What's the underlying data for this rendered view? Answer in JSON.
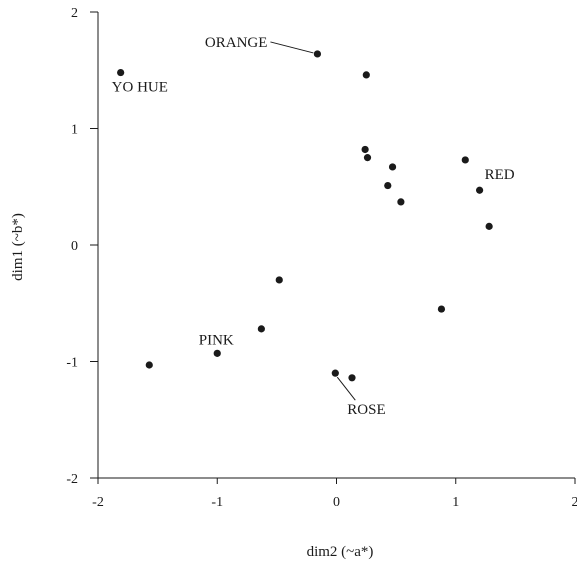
{
  "chart_data": {
    "type": "scatter",
    "title": "",
    "xlabel": "dim2 (~a*)",
    "ylabel": "dim1 (~b*)",
    "xlim": [
      -2,
      2
    ],
    "ylim": [
      -2,
      2
    ],
    "xticks": [
      -2,
      -1,
      0,
      1,
      2
    ],
    "yticks": [
      -2,
      -1,
      0,
      1,
      2
    ],
    "grid": false,
    "point_color": "#1a1a1a",
    "points": [
      {
        "x": -1.81,
        "y": 1.48,
        "label": "YO HUE"
      },
      {
        "x": -0.16,
        "y": 1.64,
        "label": "ORANGE"
      },
      {
        "x": 0.25,
        "y": 1.46,
        "label": ""
      },
      {
        "x": 0.24,
        "y": 0.82,
        "label": ""
      },
      {
        "x": 0.26,
        "y": 0.75,
        "label": ""
      },
      {
        "x": 0.47,
        "y": 0.67,
        "label": ""
      },
      {
        "x": 0.43,
        "y": 0.51,
        "label": ""
      },
      {
        "x": 0.54,
        "y": 0.37,
        "label": ""
      },
      {
        "x": 1.08,
        "y": 0.73,
        "label": ""
      },
      {
        "x": 1.2,
        "y": 0.47,
        "label": "RED"
      },
      {
        "x": 1.28,
        "y": 0.16,
        "label": ""
      },
      {
        "x": -0.48,
        "y": -0.3,
        "label": ""
      },
      {
        "x": -0.63,
        "y": -0.72,
        "label": ""
      },
      {
        "x": -1.0,
        "y": -0.93,
        "label": "PINK"
      },
      {
        "x": -1.57,
        "y": -1.03,
        "label": ""
      },
      {
        "x": 0.88,
        "y": -0.55,
        "label": ""
      },
      {
        "x": -0.01,
        "y": -1.1,
        "label": "ROSE"
      },
      {
        "x": 0.13,
        "y": -1.14,
        "label": ""
      }
    ]
  }
}
